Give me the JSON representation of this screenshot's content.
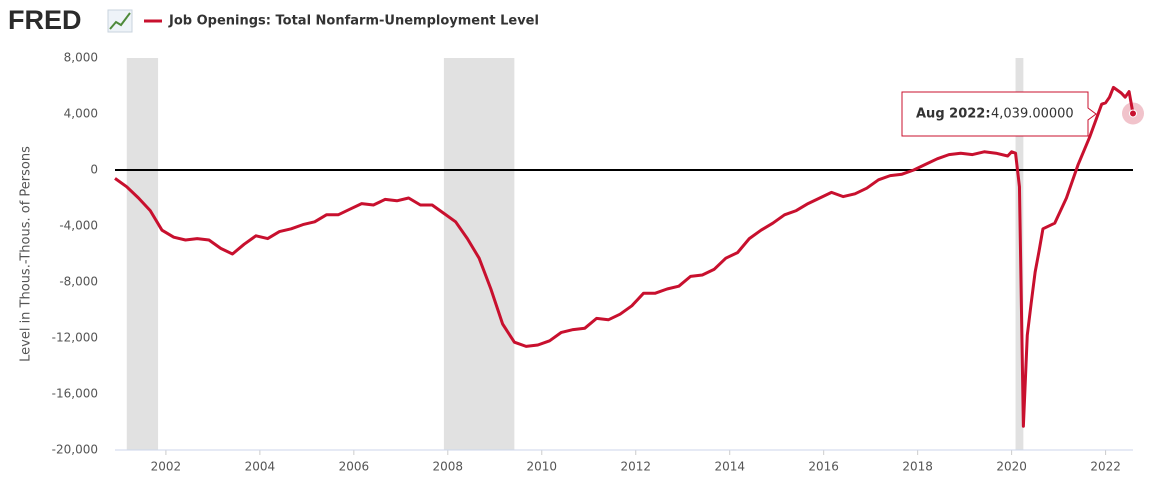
{
  "chart_data": {
    "type": "line",
    "logo": "FRED",
    "y_label": "Level in Thous.-Thous. of Persons",
    "x": [
      "2000-12",
      "2001-03",
      "2001-06",
      "2001-09",
      "2001-12",
      "2002-03",
      "2002-06",
      "2002-09",
      "2002-12",
      "2003-03",
      "2003-06",
      "2003-09",
      "2003-12",
      "2004-03",
      "2004-06",
      "2004-09",
      "2004-12",
      "2005-03",
      "2005-06",
      "2005-09",
      "2005-12",
      "2006-03",
      "2006-06",
      "2006-09",
      "2006-12",
      "2007-03",
      "2007-06",
      "2007-09",
      "2007-12",
      "2008-03",
      "2008-06",
      "2008-09",
      "2008-12",
      "2009-03",
      "2009-06",
      "2009-09",
      "2009-12",
      "2010-03",
      "2010-06",
      "2010-09",
      "2010-12",
      "2011-03",
      "2011-06",
      "2011-09",
      "2011-12",
      "2012-03",
      "2012-06",
      "2012-09",
      "2012-12",
      "2013-03",
      "2013-06",
      "2013-09",
      "2013-12",
      "2014-03",
      "2014-06",
      "2014-09",
      "2014-12",
      "2015-03",
      "2015-06",
      "2015-09",
      "2015-12",
      "2016-03",
      "2016-06",
      "2016-09",
      "2016-12",
      "2017-03",
      "2017-06",
      "2017-09",
      "2017-12",
      "2018-03",
      "2018-06",
      "2018-09",
      "2018-12",
      "2019-03",
      "2019-06",
      "2019-09",
      "2019-12",
      "2020-01",
      "2020-02",
      "2020-03",
      "2020-04",
      "2020-05",
      "2020-06",
      "2020-07",
      "2020-08",
      "2020-09",
      "2020-12",
      "2021-03",
      "2021-06",
      "2021-09",
      "2021-12",
      "2022-01",
      "2022-02",
      "2022-03",
      "2022-05",
      "2022-06",
      "2022-07",
      "2022-08"
    ],
    "series": [
      {
        "name": "Job Openings: Total Nonfarm-Unemployment Level",
        "color": "#c8102e",
        "values": [
          -600,
          -1200,
          -2000,
          -2900,
          -4300,
          -4800,
          -5000,
          -4900,
          -5000,
          -5600,
          -6000,
          -5300,
          -4700,
          -4900,
          -4400,
          -4200,
          -3900,
          -3700,
          -3200,
          -3200,
          -2800,
          -2400,
          -2500,
          -2100,
          -2200,
          -2000,
          -2500,
          -2500,
          -3100,
          -3700,
          -4900,
          -6300,
          -8500,
          -11000,
          -12300,
          -12600,
          -12500,
          -12200,
          -11600,
          -11400,
          -11300,
          -10600,
          -10700,
          -10300,
          -9700,
          -8800,
          -8800,
          -8500,
          -8300,
          -7600,
          -7500,
          -7100,
          -6300,
          -5900,
          -4900,
          -4300,
          -3800,
          -3200,
          -2900,
          -2400,
          -2000,
          -1600,
          -1900,
          -1700,
          -1300,
          -700,
          -400,
          -300,
          0,
          400,
          800,
          1100,
          1200,
          1100,
          1300,
          1200,
          1000,
          1300,
          1200,
          -1200,
          -18300,
          -11800,
          -9500,
          -7300,
          -5800,
          -4200,
          -3800,
          -2000,
          400,
          2400,
          4700,
          4800,
          5200,
          5900,
          5500,
          5200,
          5600,
          4039
        ]
      }
    ],
    "xlim": [
      "2000-12",
      "2022-08"
    ],
    "xticks": [
      2002,
      2004,
      2006,
      2008,
      2010,
      2012,
      2014,
      2016,
      2018,
      2020,
      2022
    ],
    "ylim": [
      -20000,
      8000
    ],
    "yticks": [
      {
        "value": -20000,
        "label": "-20,000"
      },
      {
        "value": -16000,
        "label": "-16,000"
      },
      {
        "value": -12000,
        "label": "-12,000"
      },
      {
        "value": -8000,
        "label": "-8,000"
      },
      {
        "value": -4000,
        "label": "-4,000"
      },
      0,
      {
        "value": 4000,
        "label": "4,000"
      },
      {
        "value": 8000,
        "label": "8,000"
      }
    ],
    "shaded_periods": [
      [
        "2001-03",
        "2001-11"
      ],
      [
        "2007-12",
        "2009-06"
      ],
      [
        "2020-02",
        "2020-04"
      ]
    ],
    "shade_color": "#e1e1e1",
    "zero_line": true,
    "tooltip": {
      "date_label": "Aug 2022:",
      "value_label": "4,039.00000"
    }
  }
}
